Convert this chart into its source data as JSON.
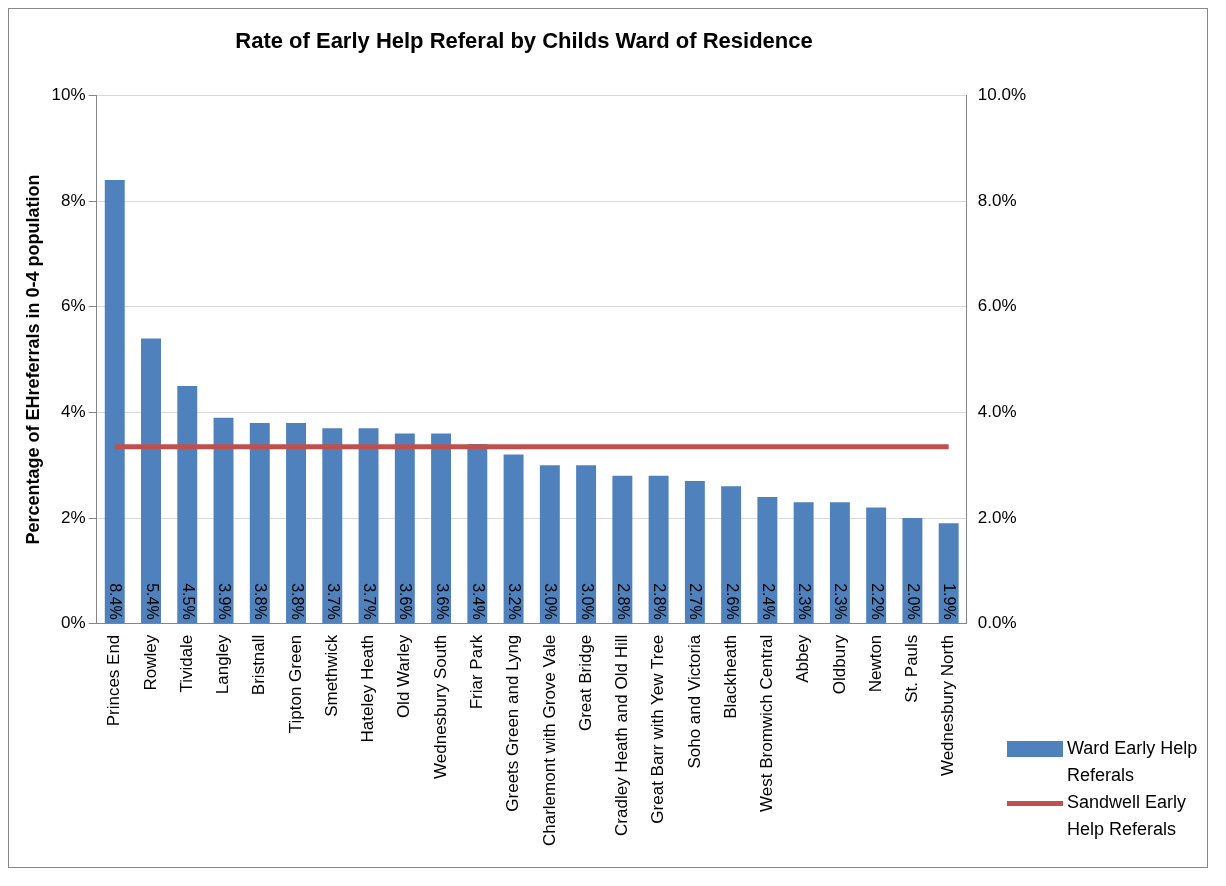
{
  "chart_data": {
    "type": "bar",
    "title": "Rate of Early Help Referal by Childs Ward of Residence",
    "ylabel": "Percentage of EHreferrals in 0-4 population",
    "categories": [
      "Princes End",
      "Rowley",
      "Tividale",
      "Langley",
      "Bristnall",
      "Tipton Green",
      "Smethwick",
      "Hateley Heath",
      "Old Warley",
      "Wednesbury South",
      "Friar Park",
      "Greets Green and Lyng",
      "Charlemont with Grove Vale",
      "Great Bridge",
      "Cradley Heath and Old Hill",
      "Great Barr with Yew Tree",
      "Soho and Victoria",
      "Blackheath",
      "West Bromwich Central",
      "Abbey",
      "Oldbury",
      "Newton",
      "St. Pauls",
      "Wednesbury North"
    ],
    "series": [
      {
        "name": "Ward Early Help Referals",
        "color": "#4f81bd",
        "values": [
          8.4,
          5.4,
          4.5,
          3.9,
          3.8,
          3.8,
          3.7,
          3.7,
          3.6,
          3.6,
          3.4,
          3.2,
          3.0,
          3.0,
          2.8,
          2.8,
          2.7,
          2.6,
          2.4,
          2.3,
          2.3,
          2.2,
          2.0,
          1.9
        ],
        "value_labels": [
          "8.4%",
          "5.4%",
          "4.5%",
          "3.9%",
          "3.8%",
          "3.8%",
          "3.7%",
          "3.7%",
          "3.6%",
          "3.6%",
          "3.4%",
          "3.2%",
          "3.0%",
          "3.0%",
          "2.8%",
          "2.8%",
          "2.7%",
          "2.6%",
          "2.4%",
          "2.3%",
          "2.3%",
          "2.2%",
          "2.0%",
          "1.9%"
        ]
      },
      {
        "name": "Sandwell Early Help Referals",
        "type": "line",
        "color": "#c0504d",
        "values": [
          3.35,
          3.35,
          3.35,
          3.35,
          3.35,
          3.35,
          3.35,
          3.35,
          3.35,
          3.35,
          3.35,
          3.35,
          3.35,
          3.35,
          3.35,
          3.35,
          3.35,
          3.35,
          3.35,
          3.35,
          3.35,
          3.35,
          3.35,
          3.35
        ]
      }
    ],
    "ylim": [
      0,
      10
    ],
    "yticks": [
      {
        "value": 0,
        "label": "0%"
      },
      {
        "value": 2,
        "label": "2%"
      },
      {
        "value": 4,
        "label": "4%"
      },
      {
        "value": 6,
        "label": "6%"
      },
      {
        "value": 8,
        "label": "8%"
      },
      {
        "value": 10,
        "label": "10%"
      }
    ],
    "y2lim": [
      0,
      10
    ],
    "y2ticks": [
      {
        "value": 0,
        "label": "0.0%"
      },
      {
        "value": 2,
        "label": "2.0%"
      },
      {
        "value": 4,
        "label": "4.0%"
      },
      {
        "value": 6,
        "label": "6.0%"
      },
      {
        "value": 8,
        "label": "8.0%"
      },
      {
        "value": 10,
        "label": "10.0%"
      }
    ],
    "grid": "y",
    "legend": "bottom right",
    "marker": "none"
  }
}
